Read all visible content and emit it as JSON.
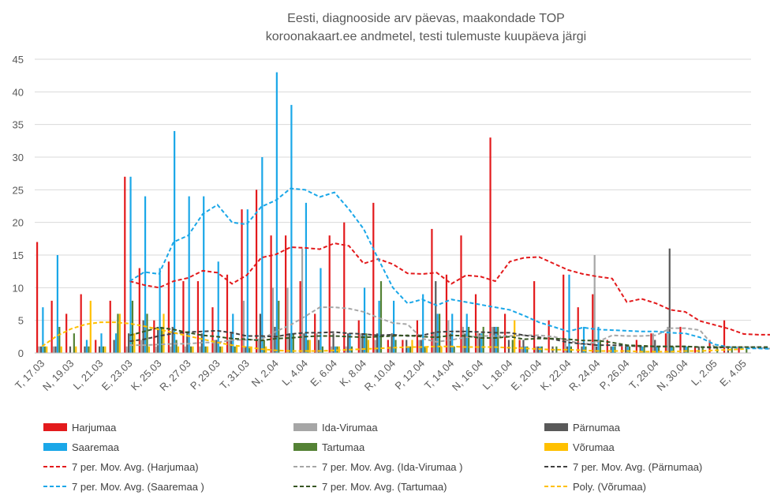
{
  "chart_data": {
    "type": "bar",
    "title": [
      "Eesti, diagnooside arv päevas, maakondade TOP",
      "koroonakaart.ee andmetel, testi tulemuste kuupäeva järgi"
    ],
    "xlabel": "",
    "ylabel": "",
    "ylim": [
      0,
      45
    ],
    "yticks": [
      0,
      5,
      10,
      15,
      20,
      25,
      30,
      35,
      40,
      45
    ],
    "grid": "horizontal",
    "legend_position": "bottom",
    "categories": [
      "T, 17.03",
      "K, 18.03",
      "N, 19.03",
      "R, 20.03",
      "L, 21.03",
      "P, 22.03",
      "E, 23.03",
      "T, 24.03",
      "K, 25.03",
      "N, 26.03",
      "R, 27.03",
      "L, 28.03",
      "P, 29.03",
      "E, 30.03",
      "T, 31.03",
      "K, 1.04",
      "N, 2.04",
      "R, 3.04",
      "L, 4.04",
      "P, 5.04",
      "E, 6.04",
      "T, 7.04",
      "K, 8.04",
      "N, 9.04",
      "R, 10.04",
      "L, 11.04",
      "P, 12.04",
      "E, 13.04",
      "T, 14.04",
      "K, 15.04",
      "N, 16.04",
      "R, 17.04",
      "L, 18.04",
      "P, 19.04",
      "E, 20.04",
      "T, 21.04",
      "K, 22.04",
      "N, 23.04",
      "R, 24.04",
      "L, 25.04",
      "P, 26.04",
      "E, 27.04",
      "T, 28.04",
      "K, 29.04",
      "N, 30.04",
      "R, 1.05",
      "L, 2.05",
      "P, 3.05",
      "E, 4.05"
    ],
    "xtick_labels": [
      "T, 17.03",
      "N, 19.03",
      "L, 21.03",
      "E, 23.03",
      "K, 25.03",
      "R, 27.03",
      "P, 29.03",
      "T, 31.03",
      "N, 2.04",
      "L, 4.04",
      "E, 6.04",
      "K, 8.04",
      "R, 10.04",
      "P, 12.04",
      "T, 14.04",
      "N, 16.04",
      "L, 18.04",
      "E, 20.04",
      "K, 22.04",
      "R, 24.04",
      "P, 26.04",
      "T, 28.04",
      "N, 30.04",
      "L, 2.05",
      "E, 4.05"
    ],
    "series": [
      {
        "name": "Harjumaa",
        "color": "#e31a1c",
        "values": [
          17,
          8,
          6,
          9,
          2,
          8,
          27,
          13,
          5,
          14,
          11,
          11,
          7,
          12,
          22,
          25,
          18,
          18,
          11,
          6,
          18,
          20,
          5,
          23,
          2,
          2,
          5,
          19,
          12,
          18,
          9,
          33,
          6,
          2,
          11,
          5,
          12,
          7,
          9,
          2,
          1,
          2,
          3,
          3,
          4,
          1,
          2,
          5,
          1
        ]
      },
      {
        "name": "Ida-Virumaa",
        "color": "#a6a6a6",
        "values": [
          1,
          1,
          0,
          0,
          0,
          0,
          1,
          2,
          1,
          1,
          1,
          1,
          2,
          2,
          8,
          2,
          10,
          10,
          16,
          3,
          1,
          1,
          3,
          2,
          1,
          0,
          2,
          3,
          5,
          4,
          3,
          4,
          0,
          1,
          1,
          0,
          2,
          0,
          15,
          0,
          0,
          0,
          3,
          4,
          0,
          0,
          0,
          0,
          0
        ]
      },
      {
        "name": "Pärnumaa",
        "color": "#595959",
        "values": [
          1,
          1,
          1,
          1,
          1,
          2,
          3,
          5,
          4,
          4,
          3,
          3,
          2,
          3,
          1,
          6,
          4,
          3,
          3,
          2,
          3,
          3,
          3,
          3,
          3,
          2,
          2,
          11,
          3,
          3,
          3,
          4,
          2,
          2,
          1,
          1,
          1,
          1,
          1,
          1,
          1,
          1,
          2,
          16,
          1,
          1,
          0,
          1,
          0
        ]
      },
      {
        "name": "Saaremaa",
        "color": "#1aa7e8",
        "values": [
          7,
          15,
          0,
          2,
          3,
          3,
          27,
          24,
          13,
          34,
          24,
          24,
          14,
          6,
          22,
          30,
          43,
          38,
          23,
          13,
          1,
          3,
          10,
          8,
          8,
          1,
          9,
          6,
          6,
          6,
          3,
          4,
          0,
          1,
          1,
          0,
          12,
          4,
          4,
          1,
          1,
          1,
          1,
          1,
          1,
          0,
          0,
          0,
          0
        ]
      },
      {
        "name": "Tartumaa",
        "color": "#548235",
        "values": [
          1,
          4,
          3,
          1,
          1,
          6,
          8,
          6,
          4,
          2,
          1,
          1,
          1,
          1,
          1,
          2,
          8,
          3,
          2,
          1,
          1,
          1,
          3,
          11,
          2,
          1,
          1,
          6,
          1,
          4,
          4,
          4,
          2,
          1,
          1,
          1,
          1,
          1,
          2,
          1,
          1,
          1,
          1,
          1,
          1,
          1,
          1,
          1,
          1
        ]
      },
      {
        "name": "Võrumaa",
        "color": "#ffc000",
        "values": [
          1,
          1,
          1,
          8,
          1,
          6,
          3,
          1,
          6,
          1,
          1,
          1,
          1,
          1,
          1,
          1,
          0,
          0,
          2,
          0,
          1,
          0,
          2,
          0,
          0,
          2,
          1,
          1,
          0,
          0,
          0,
          0,
          5,
          0,
          0,
          0,
          0,
          0,
          0,
          0,
          0,
          0,
          0,
          0,
          0,
          0,
          0,
          0,
          0
        ]
      }
    ],
    "trend_lines": [
      {
        "name": "7 per. Mov. Avg. (Harjumaa)",
        "color": "#e31a1c",
        "start": 6,
        "values": [
          11,
          10.4,
          10,
          11,
          11.5,
          12.6,
          12.3,
          10.6,
          11.9,
          14.6,
          15.1,
          16.2,
          16.1,
          15.9,
          16.8,
          16.4,
          13.7,
          14.4,
          13.6,
          12.2,
          12.1,
          12.3,
          10.6,
          11.9,
          11.7,
          11,
          14,
          14.6,
          14.7,
          13.7,
          12.7,
          12.1,
          11.7,
          11.4,
          7.8,
          8.3,
          7.6,
          6.6,
          6.3,
          4.9,
          4.3,
          3.7,
          2.9,
          2.8,
          2.8
        ]
      },
      {
        "name": "7 per. Mov. Avg. (Ida-Virumaa )",
        "color": "#a6a6a6",
        "start": 6,
        "values": [
          1.2,
          1.2,
          1.3,
          1.4,
          1.4,
          1.6,
          1.6,
          2,
          2,
          2.1,
          3.3,
          4.3,
          5.6,
          7,
          7,
          6.8,
          6.3,
          5.4,
          4.6,
          4.4,
          2.2,
          1.7,
          2,
          2.4,
          2.6,
          2.6,
          2.6,
          2.7,
          2.7,
          2.5,
          1.9,
          1.3,
          1.7,
          2.7,
          2.6,
          2.6,
          2.7,
          3.8,
          3.8,
          3.5,
          0.9,
          0.9,
          0.9,
          0.9,
          0.6
        ]
      },
      {
        "name": "7 per. Mov. Avg. (Pärnumaa)",
        "color": "#404040",
        "start": 6,
        "values": [
          1.8,
          2.1,
          2.6,
          3,
          3.2,
          3.3,
          3.4,
          3.1,
          2.6,
          2.6,
          2.5,
          2.9,
          3.1,
          3.1,
          3.2,
          3,
          2.9,
          2.7,
          2.8,
          2.6,
          2.7,
          3.2,
          3.3,
          3.3,
          3.2,
          3.1,
          3.1,
          2.7,
          2.4,
          2.1,
          1.6,
          1.4,
          1.2,
          1.2,
          1.1,
          1,
          1,
          1,
          1,
          0.9,
          0.8,
          0.9,
          0.9,
          0.8,
          0.7
        ]
      },
      {
        "name": "7 per. Mov. Avg. (Saaremaa )",
        "color": "#1aa7e8",
        "start": 6,
        "values": [
          11,
          12.4,
          12.1,
          17,
          18,
          21.3,
          22.7,
          20,
          19.7,
          22.4,
          23.4,
          25.2,
          25,
          23.9,
          24.6,
          22,
          19,
          14.4,
          10,
          7.6,
          8.2,
          7.3,
          8.2,
          7.8,
          7.4,
          7,
          6.6,
          5.7,
          4.7,
          4,
          3.3,
          3.9,
          3.6,
          3.5,
          3.4,
          3.3,
          3.3,
          3.1,
          3,
          2.4,
          1.3,
          0.9,
          0.7,
          0.7,
          0.6
        ]
      },
      {
        "name": "7 per. Mov. Avg. (Tartumaa)",
        "color": "#375623",
        "start": 6,
        "values": [
          2.7,
          3.3,
          3.9,
          3.6,
          3.1,
          2.7,
          2.5,
          2.2,
          2.1,
          1.9,
          2.2,
          2.3,
          2.5,
          2.6,
          2.6,
          2.5,
          2.4,
          2.5,
          2.6,
          2.7,
          2.5,
          2.4,
          2.7,
          2.6,
          2.3,
          2.3,
          2.5,
          2.1,
          2.2,
          2.2,
          2.1,
          1.9,
          1.9,
          1.6,
          1.2,
          1.1,
          1,
          1,
          1,
          0.9,
          0.9,
          0.9,
          0.9,
          0.9,
          0.9
        ]
      },
      {
        "name": "Poly. (Võrumaa)",
        "color": "#ffc000",
        "start": 0,
        "values": [
          1,
          2.6,
          3.7,
          4.4,
          4.7,
          4.7,
          4.5,
          4.1,
          3.6,
          3.1,
          2.6,
          2.1,
          1.6,
          1.2,
          0.9,
          0.6,
          0.4,
          0.3,
          0.3,
          0.3,
          0.4,
          0.5,
          0.6,
          0.7,
          0.8,
          0.9,
          0.9,
          1,
          1,
          0.9,
          0.9,
          0.9,
          0.8,
          0.7,
          0.6,
          0.5,
          0.5,
          0.4,
          0.3,
          0.3,
          0.3,
          0.2,
          0.2,
          0.2,
          0.3,
          0.3,
          0.4,
          0.5,
          0.6
        ]
      }
    ]
  }
}
